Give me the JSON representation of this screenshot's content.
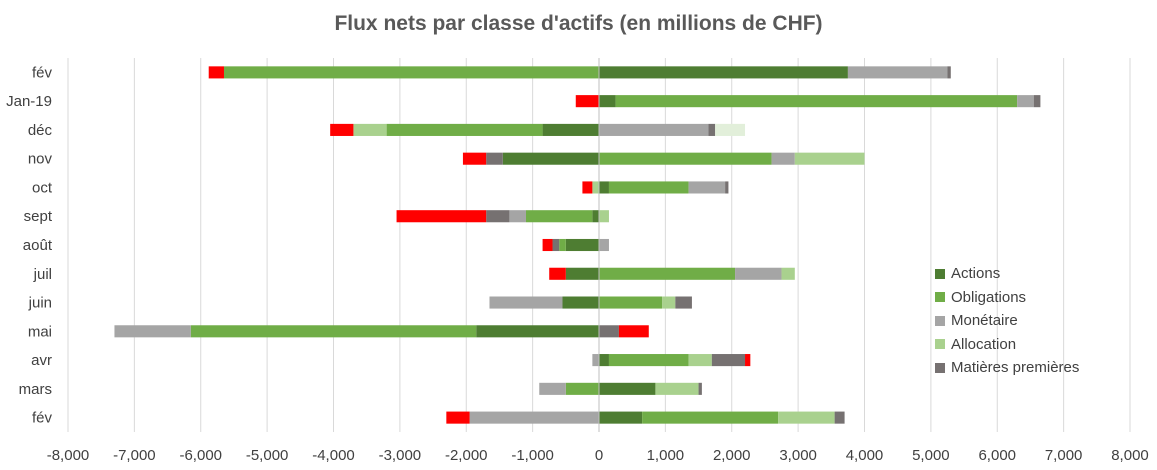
{
  "chart_data": {
    "type": "bar",
    "orientation": "horizontal",
    "stacked": true,
    "title": "Flux nets par classe d'actifs (en millions de CHF)",
    "xlim": [
      -8000,
      8000
    ],
    "x_ticks": [
      "-8,000",
      "-7,000",
      "-6,000",
      "-5,000",
      "-4,000",
      "-3,000",
      "-2,000",
      "-1,000",
      "0",
      "1,000",
      "2,000",
      "3,000",
      "4,000",
      "5,000",
      "6,000",
      "7,000",
      "8,000"
    ],
    "grid": true,
    "legend_position": "right",
    "categories": [
      "fév",
      "Jan-19",
      "déc",
      "nov",
      "oct",
      "sept",
      "août",
      "juil",
      "juin",
      "mai",
      "avr",
      "mars",
      "fév"
    ],
    "series": [
      {
        "name": "Actions",
        "color": "#4e7d32",
        "values": [
          3750,
          250,
          -850,
          -1450,
          150,
          -100,
          -500,
          -500,
          -550,
          -1850,
          150,
          850,
          650
        ]
      },
      {
        "name": "Obligations",
        "color": "#70ad47",
        "values": [
          -5650,
          6050,
          -2350,
          2600,
          1200,
          -1000,
          -100,
          2050,
          950,
          -4300,
          1200,
          -500,
          2050
        ]
      },
      {
        "name": "Monétaire",
        "color": "#a5a5a5",
        "values": [
          1500,
          250,
          1650,
          350,
          550,
          -250,
          150,
          700,
          -1100,
          -1150,
          -100,
          -400,
          -1950
        ]
      },
      {
        "name": "Allocation",
        "color": "#a9d18e",
        "values": [
          0,
          0,
          -500,
          1050,
          -100,
          150,
          0,
          200,
          200,
          0,
          350,
          650,
          850
        ]
      },
      {
        "name": "Matières premières",
        "color": "#767171",
        "values": [
          50,
          100,
          100,
          -250,
          50,
          -350,
          -100,
          0,
          250,
          300,
          500,
          50,
          150
        ]
      },
      {
        "name": "",
        "color": "#ff0000",
        "values": [
          -230,
          -350,
          -350,
          -350,
          -150,
          -1350,
          -150,
          -250,
          0,
          450,
          80,
          0,
          -350
        ]
      },
      {
        "name": "",
        "color": "#e2efda",
        "values": [
          0,
          0,
          450,
          0,
          0,
          0,
          0,
          0,
          0,
          0,
          0,
          0,
          0
        ]
      }
    ]
  },
  "legend": {
    "items": [
      {
        "label": "Actions",
        "color": "#4e7d32"
      },
      {
        "label": "Obligations",
        "color": "#70ad47"
      },
      {
        "label": "Monétaire",
        "color": "#a5a5a5"
      },
      {
        "label": "Allocation",
        "color": "#a9d18e"
      },
      {
        "label": "Matières premières",
        "color": "#767171"
      }
    ]
  }
}
